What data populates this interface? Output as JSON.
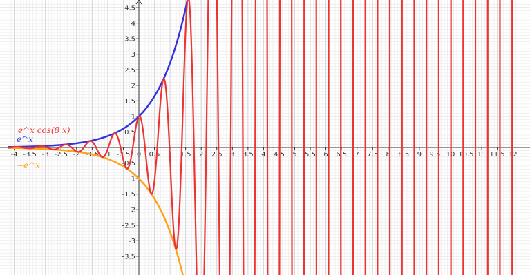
{
  "chart_data": {
    "type": "line",
    "title": "",
    "xlabel": "",
    "ylabel": "",
    "xlim": [
      -4.2,
      12.1
    ],
    "ylim": [
      -4.0,
      4.7
    ],
    "grid": true,
    "x_ticks": [
      -4,
      -3.5,
      -3,
      -2.5,
      -2,
      -1.5,
      -1,
      -0.5,
      0,
      0.5,
      1,
      1.5,
      2,
      2.5,
      3,
      3.5,
      4,
      4.5,
      5,
      5.5,
      6,
      6.5,
      7,
      7.5,
      8,
      8.5,
      9,
      9.5,
      10,
      10.5,
      11,
      11.5,
      12
    ],
    "x_tick_labels": [
      "-4",
      "-3.5",
      "-3",
      "-2.5",
      "-2",
      "-1.5",
      "-1",
      "-0.5",
      "0",
      "0.5",
      "1",
      "1.5",
      "2",
      "2.5",
      "3",
      "3.5",
      "4",
      "4.5",
      "5",
      "5.5",
      "6",
      "6.5",
      "7",
      "7.5",
      "8",
      "8.5",
      "9",
      "9.5",
      "10",
      "10.5",
      "11",
      "11.5",
      "12"
    ],
    "y_ticks": [
      -3.5,
      -3,
      -2.5,
      -2,
      -1.5,
      -1,
      -0.5,
      0.5,
      1,
      1.5,
      2,
      2.5,
      3,
      3.5,
      4,
      4.5
    ],
    "y_tick_labels": [
      "-3.5",
      "-3",
      "-2.5",
      "-2",
      "-1.5",
      "-1",
      "-0.5",
      "0.5",
      "1",
      "1.5",
      "2",
      "2.5",
      "3",
      "3.5",
      "4",
      "4.5"
    ],
    "series": [
      {
        "name": "e^x",
        "color": "#3333dd",
        "x": [
          -4.2,
          -4,
          -3.5,
          -3,
          -2.5,
          -2,
          -1.5,
          -1,
          -0.5,
          0,
          0.25,
          0.5,
          0.75,
          1,
          1.25,
          1.5,
          1.55
        ],
        "y": [
          0.015,
          0.018,
          0.03,
          0.05,
          0.082,
          0.135,
          0.223,
          0.368,
          0.607,
          1,
          1.284,
          1.649,
          2.117,
          2.718,
          3.49,
          4.482,
          4.71
        ]
      },
      {
        "name": "-e^x",
        "color": "#ffa31a",
        "x": [
          -4.2,
          -4,
          -3.5,
          -3,
          -2.5,
          -2,
          -1.5,
          -1,
          -0.5,
          0,
          0.25,
          0.5,
          0.75,
          1,
          1.25,
          1.4
        ],
        "y": [
          -0.015,
          -0.018,
          -0.03,
          -0.05,
          -0.082,
          -0.135,
          -0.223,
          -0.368,
          -0.607,
          -1,
          -1.284,
          -1.649,
          -2.117,
          -2.718,
          -3.49,
          -4.06
        ]
      },
      {
        "name": "e^x cos(8 x)",
        "color": "#ee3333",
        "x": [
          -3.927,
          -3.534,
          -3.142,
          -2.749,
          -2.356,
          -1.963,
          -1.571,
          -1.178,
          -0.785,
          -0.393,
          0,
          0.393,
          0.785,
          1.178,
          1.571,
          1.963
        ],
        "y": [
          0.02,
          -0.029,
          0.043,
          -0.064,
          0.095,
          -0.14,
          0.208,
          -0.308,
          0.456,
          -0.675,
          1,
          -1.481,
          2.193,
          -3.248,
          4.81,
          -7.12
        ]
      }
    ],
    "annotations": [
      {
        "text": "e^x cos(8 x)",
        "color": "#ee3333"
      },
      {
        "text": "e^x",
        "color": "#3333dd"
      },
      {
        "text": "−e^x",
        "color": "#ffa31a"
      }
    ]
  }
}
